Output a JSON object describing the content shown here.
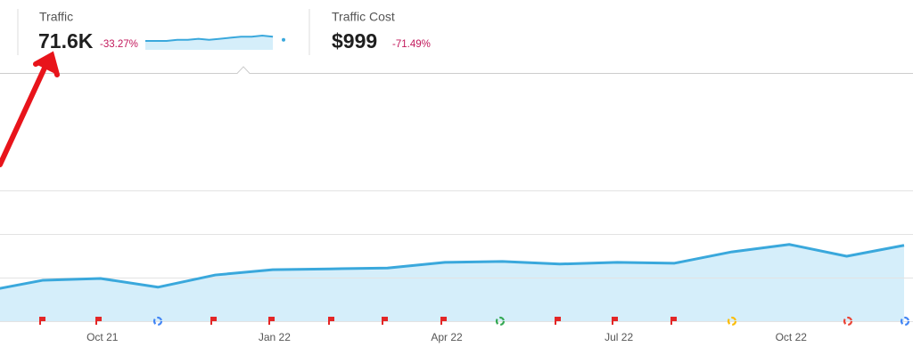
{
  "metrics": [
    {
      "label": "Traffic",
      "value": "71.6K",
      "change": "-33.27%",
      "sparkline": [
        5,
        5,
        5,
        6,
        6,
        7,
        6,
        7,
        8,
        9,
        9,
        10,
        9,
        6
      ]
    },
    {
      "label": "Traffic Cost",
      "value": "$999",
      "change": "-71.49%"
    }
  ],
  "chart_data": {
    "type": "area",
    "categories": [
      null,
      null,
      "Oct 21",
      null,
      null,
      "Jan 22",
      null,
      null,
      "Apr 22",
      null,
      null,
      "Jul 22",
      null,
      null,
      "Oct 22",
      null,
      null
    ],
    "values": [
      0.69,
      0.94,
      0.98,
      0.78,
      1.06,
      1.18,
      1.2,
      1.22,
      1.35,
      1.37,
      1.31,
      1.35,
      1.33,
      1.59,
      1.76,
      1.49,
      1.74
    ],
    "color": "#3aa8dc",
    "fill": "#d5eefa",
    "ylim": [
      0,
      5.6
    ],
    "yticks": [
      0,
      1,
      2,
      3
    ],
    "grid": true
  }
}
